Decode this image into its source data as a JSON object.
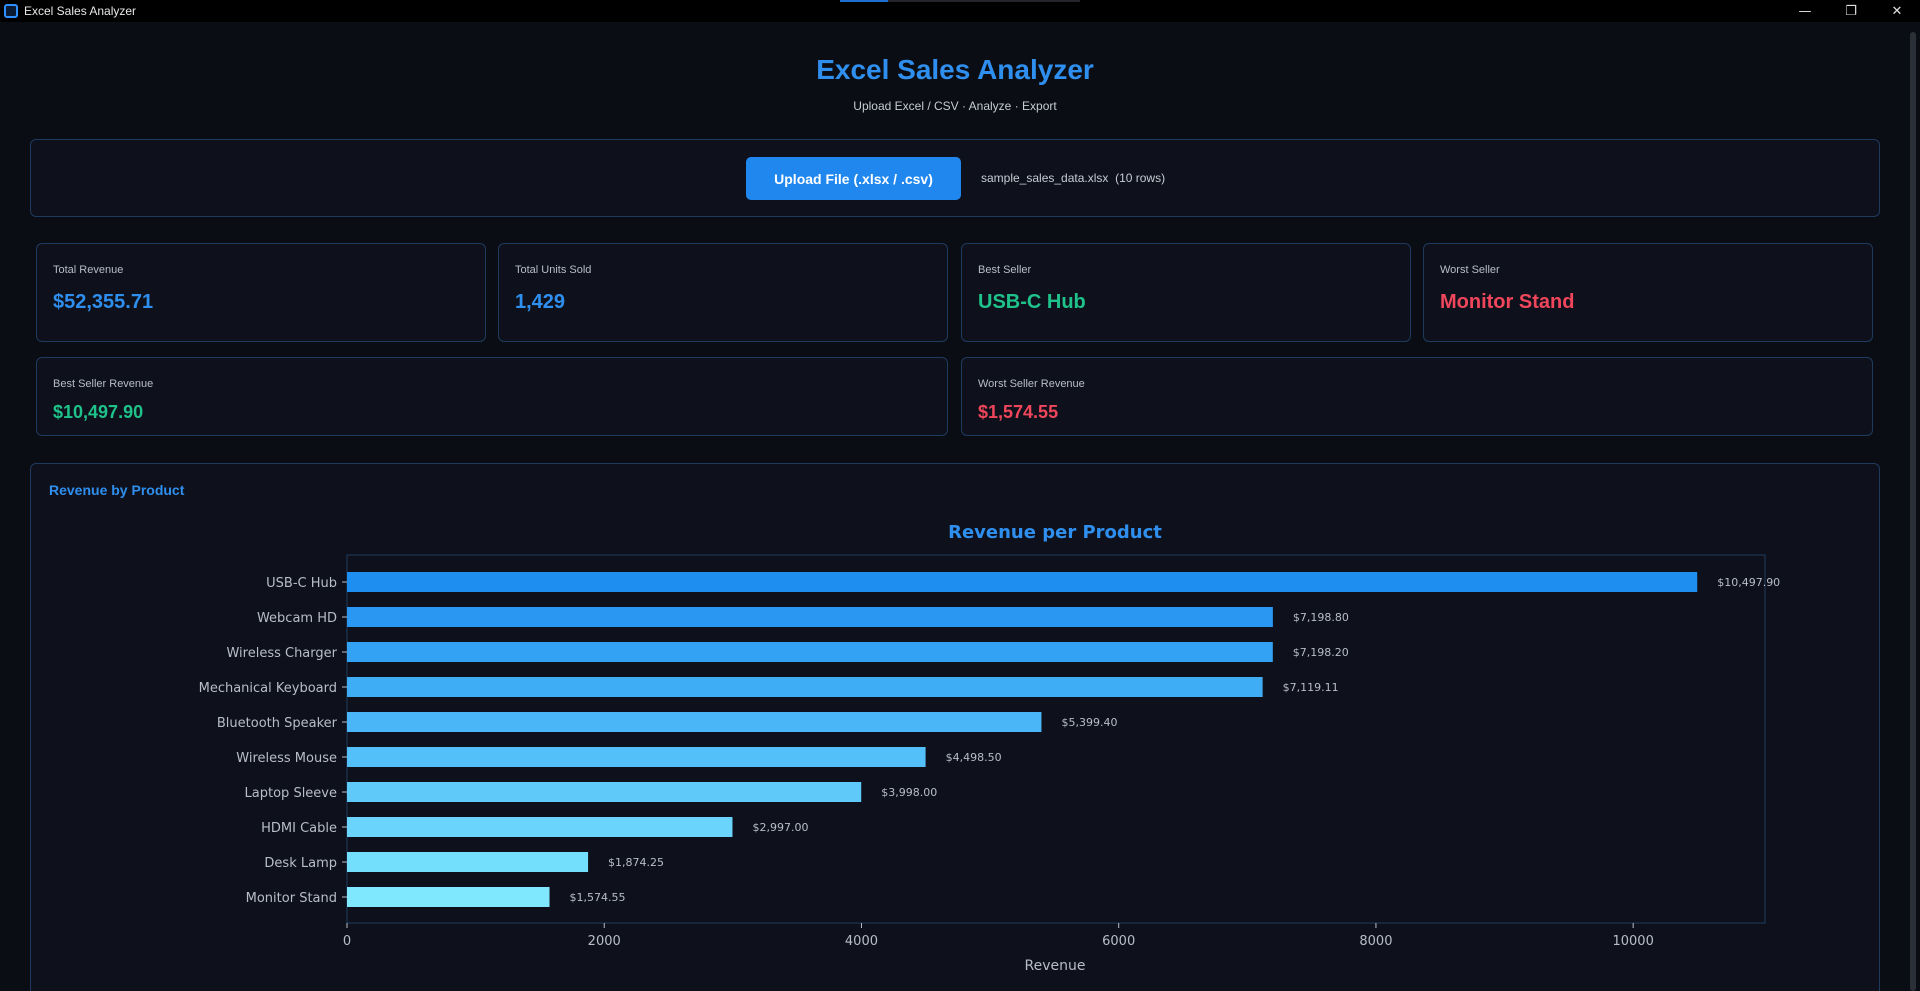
{
  "window": {
    "title": "Excel Sales Analyzer",
    "controls": {
      "minimize": "—",
      "restore": "❐",
      "close": "✕"
    }
  },
  "header": {
    "title": "Excel Sales Analyzer",
    "subtitle": "Upload Excel / CSV · Analyze · Export"
  },
  "upload": {
    "button_label": "Upload File (.xlsx / .csv)",
    "file_info": "sample_sales_data.xlsx  (10 rows)"
  },
  "stats": {
    "total_revenue": {
      "label": "Total Revenue",
      "value": "$52,355.71"
    },
    "total_units": {
      "label": "Total Units Sold",
      "value": "1,429"
    },
    "best_seller": {
      "label": "Best Seller",
      "value": "USB-C Hub"
    },
    "worst_seller": {
      "label": "Worst Seller",
      "value": "Monitor Stand"
    },
    "best_seller_revenue": {
      "label": "Best Seller Revenue",
      "value": "$10,497.90"
    },
    "worst_seller_revenue": {
      "label": "Worst Seller Revenue",
      "value": "$1,574.55"
    }
  },
  "chart_section": {
    "title": "Revenue by Product"
  },
  "colors": {
    "accent": "#2f8fef",
    "positive": "#1fc28a",
    "negative": "#f0465c",
    "bar_start": "#1f8ef1",
    "bar_end": "#7fe8ff"
  },
  "chart_data": {
    "type": "bar",
    "orientation": "horizontal",
    "title": "Revenue per Product",
    "xlabel": "Revenue",
    "ylabel": "",
    "xlim": [
      0,
      11025
    ],
    "xticks": [
      0,
      2000,
      4000,
      6000,
      8000,
      10000
    ],
    "grid": false,
    "categories": [
      "USB-C Hub",
      "Webcam HD",
      "Wireless Charger",
      "Mechanical Keyboard",
      "Bluetooth Speaker",
      "Wireless Mouse",
      "Laptop Sleeve",
      "HDMI Cable",
      "Desk Lamp",
      "Monitor Stand"
    ],
    "values": [
      10497.9,
      7198.8,
      7198.2,
      7119.11,
      5399.4,
      4498.5,
      3998.0,
      2997.0,
      1874.25,
      1574.55
    ],
    "data_labels": [
      "$10,497.90",
      "$7,198.80",
      "$7,198.20",
      "$7,119.11",
      "$5,399.40",
      "$4,498.50",
      "$3,998.00",
      "$2,997.00",
      "$1,874.25",
      "$1,574.55"
    ]
  }
}
